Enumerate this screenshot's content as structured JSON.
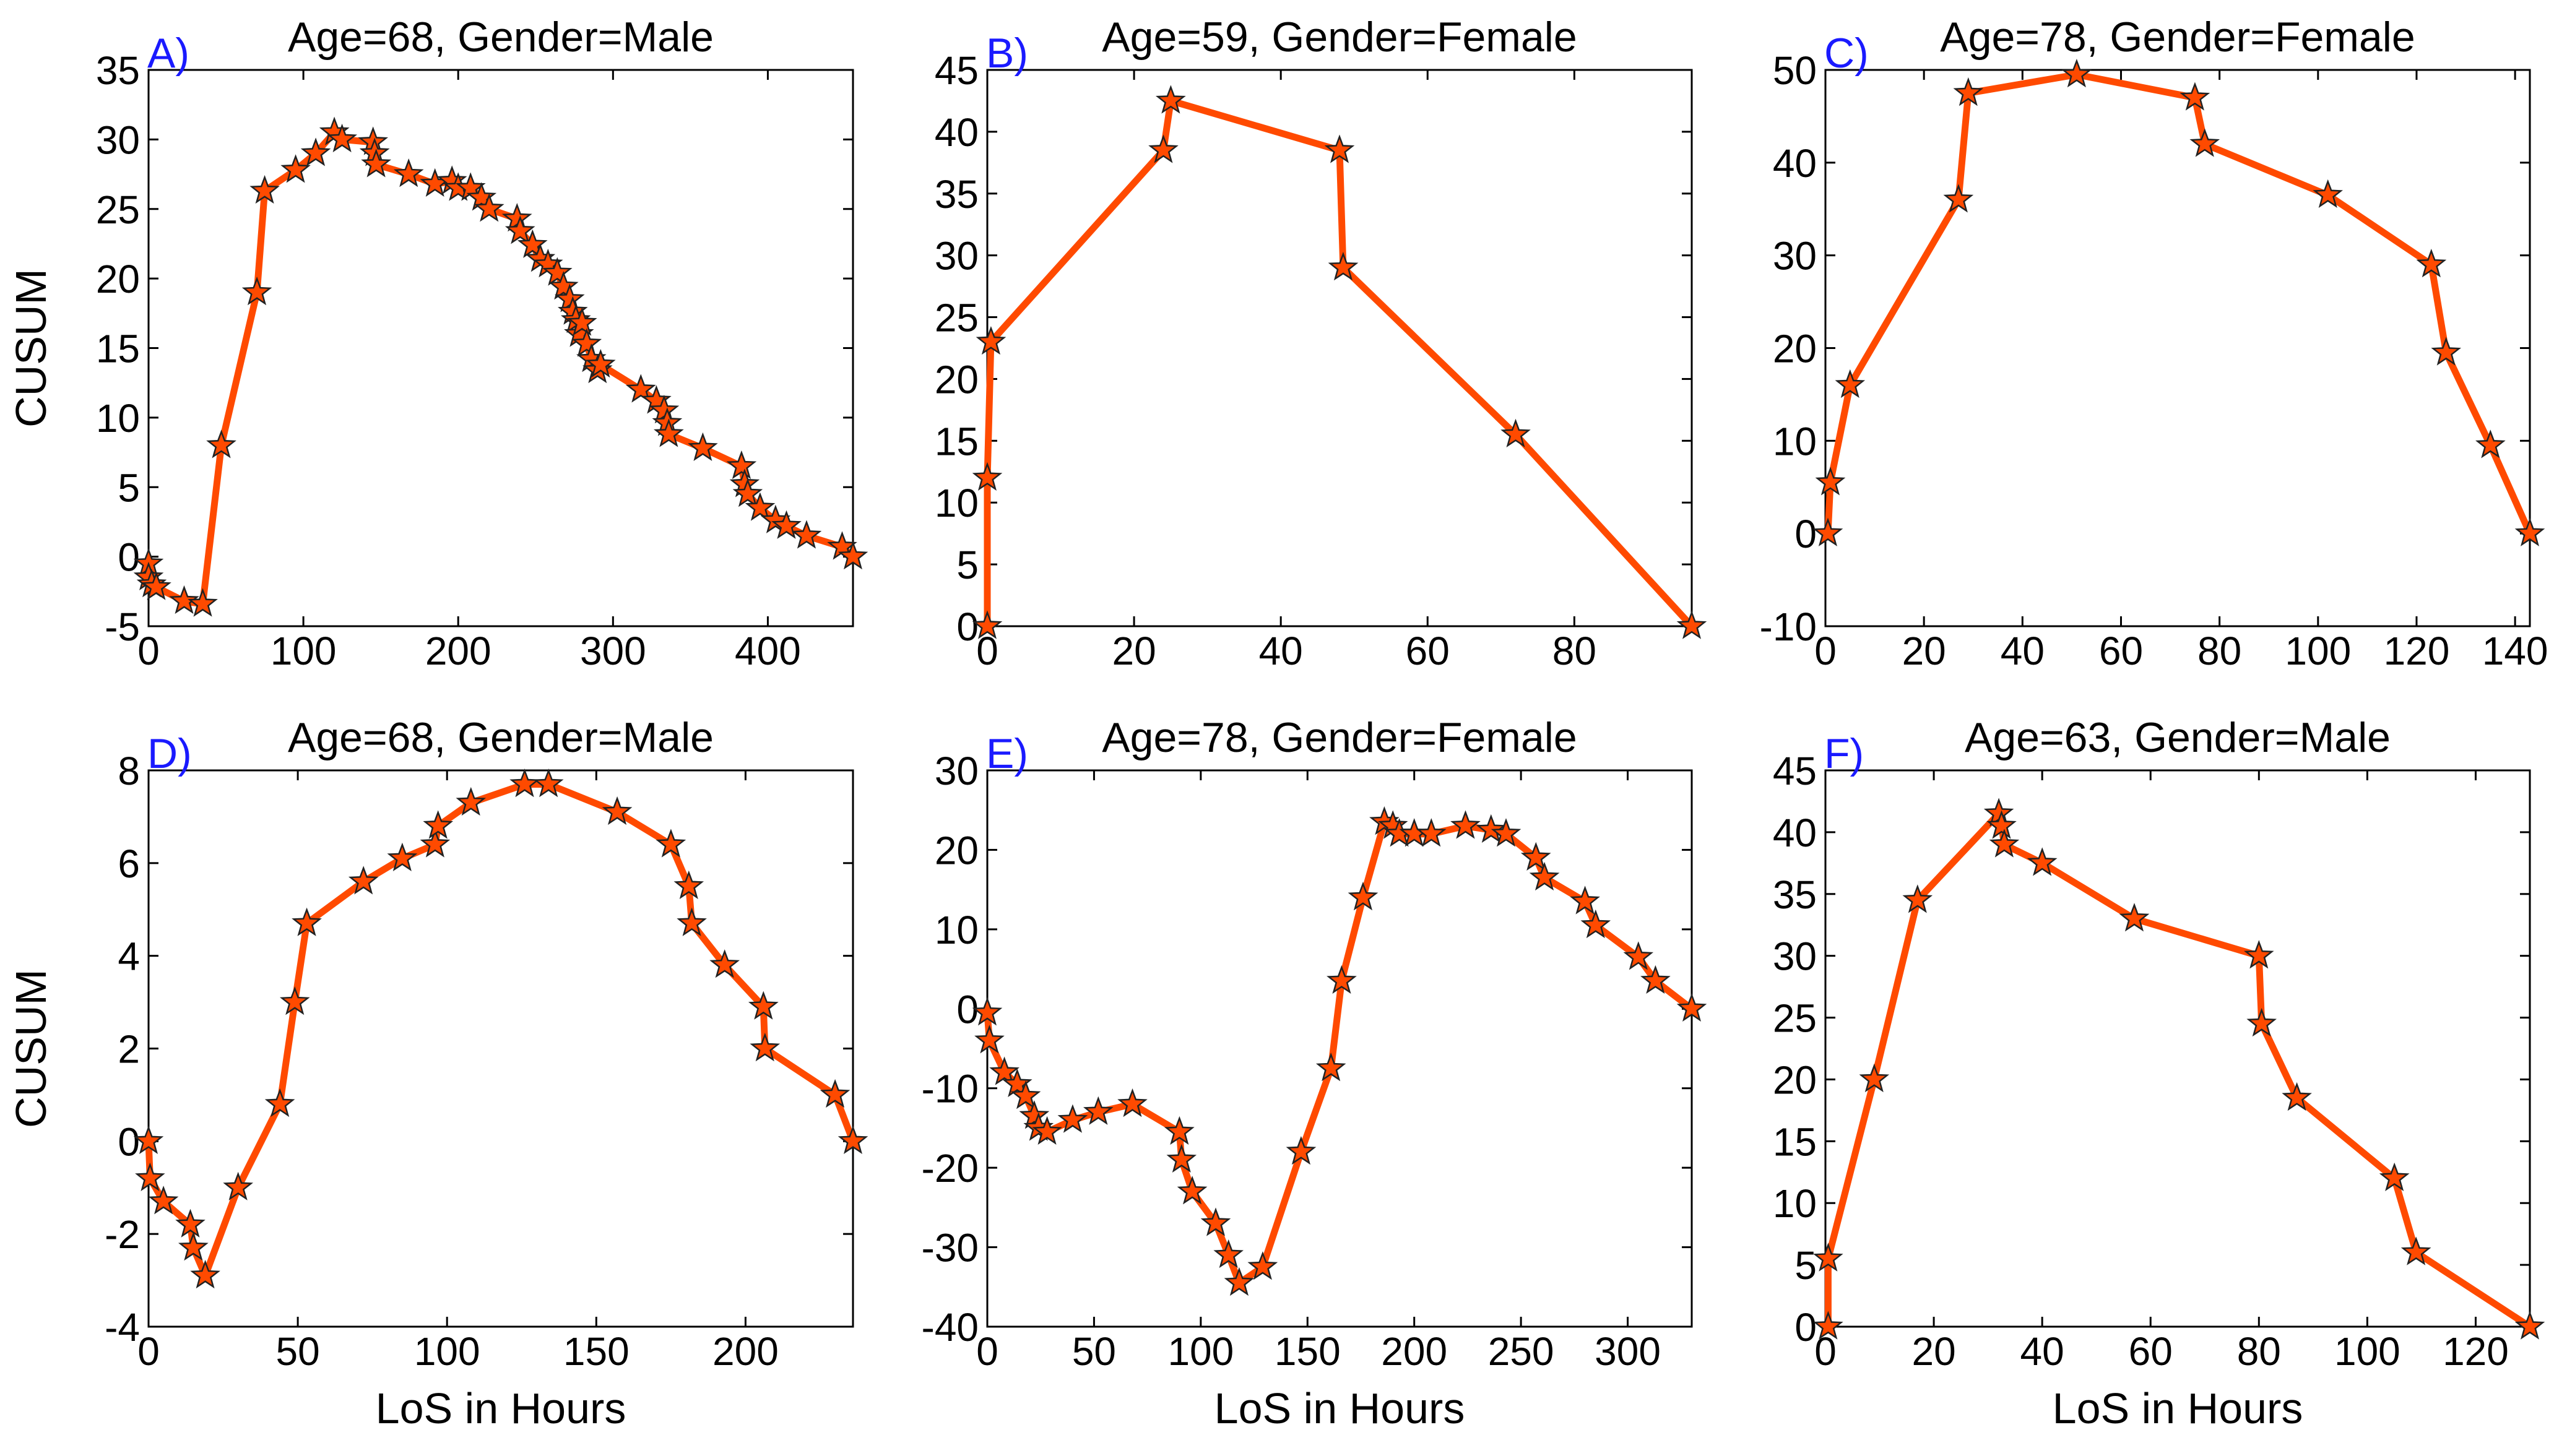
{
  "figure": {
    "line_color": "#ff4a00",
    "marker_color": "#ff4a00",
    "marker_edge_color": "#222222",
    "label_color": "#1a1aff"
  },
  "chart_data": [
    {
      "type": "line",
      "panel_label": "A)",
      "title": "Age=68, Gender=Male",
      "xlabel": "",
      "ylabel": "CUSUM",
      "xlim": [
        0,
        455
      ],
      "ylim": [
        -5,
        35
      ],
      "xticks": [
        0,
        100,
        200,
        300,
        400
      ],
      "yticks": [
        -5,
        0,
        5,
        10,
        15,
        20,
        25,
        30,
        35
      ],
      "marker": "star",
      "x": [
        0,
        0,
        2,
        5,
        23,
        35,
        47,
        70,
        75,
        95,
        108,
        120,
        125,
        145,
        146,
        147,
        168,
        185,
        196,
        200,
        208,
        215,
        220,
        238,
        240,
        248,
        253,
        258,
        264,
        268,
        272,
        274,
        276,
        278,
        280,
        283,
        286,
        290,
        292,
        318,
        328,
        333,
        335,
        336,
        358,
        383,
        385,
        387,
        395,
        405,
        412,
        425,
        448,
        455
      ],
      "y": [
        -0.5,
        -1.5,
        -2,
        -2.2,
        -3.2,
        -3.4,
        8,
        19,
        26.3,
        27.8,
        29,
        30.5,
        30,
        29.8,
        29,
        28.2,
        27.5,
        26.8,
        27,
        26.5,
        26.5,
        25.8,
        25,
        24.3,
        23.4,
        22.4,
        21.4,
        21,
        20.4,
        19.4,
        18.5,
        17.6,
        17,
        16,
        16.8,
        15.3,
        14.2,
        13.4,
        13.8,
        12,
        11.2,
        10.5,
        9.6,
        8.8,
        7.8,
        6.5,
        5.2,
        4.5,
        3.5,
        2.6,
        2.2,
        1.5,
        0.7,
        0
      ]
    },
    {
      "type": "line",
      "panel_label": "B)",
      "title": "Age=59, Gender=Female",
      "xlabel": "",
      "ylabel": "",
      "xlim": [
        0,
        96
      ],
      "ylim": [
        0,
        45
      ],
      "xticks": [
        0,
        20,
        40,
        60,
        80
      ],
      "yticks": [
        0,
        5,
        10,
        15,
        20,
        25,
        30,
        35,
        40,
        45
      ],
      "marker": "star",
      "x": [
        0,
        0,
        0.5,
        24,
        25,
        48,
        48.5,
        72,
        96
      ],
      "y": [
        0,
        12,
        23,
        38.5,
        42.5,
        38.5,
        29,
        15.5,
        0
      ]
    },
    {
      "type": "line",
      "panel_label": "C)",
      "title": "Age=78, Gender=Female",
      "xlabel": "",
      "ylabel": "",
      "xlim": [
        0,
        143
      ],
      "ylim": [
        -10,
        50
      ],
      "xticks": [
        0,
        20,
        40,
        60,
        80,
        100,
        120,
        140
      ],
      "yticks": [
        -10,
        0,
        10,
        20,
        30,
        40,
        50
      ],
      "marker": "star",
      "x": [
        0.5,
        1,
        5,
        27,
        29,
        51,
        75,
        77,
        102,
        123,
        126,
        135,
        143
      ],
      "y": [
        0,
        5.5,
        16,
        36,
        47.5,
        49.5,
        47,
        42,
        36.5,
        29,
        19.5,
        9.5,
        0
      ]
    },
    {
      "type": "line",
      "panel_label": "D)",
      "title": "Age=68, Gender=Male",
      "xlabel": "LoS in Hours",
      "ylabel": "CUSUM",
      "xlim": [
        0,
        236
      ],
      "ylim": [
        -4,
        8
      ],
      "xticks": [
        0,
        50,
        100,
        150,
        200
      ],
      "yticks": [
        -4,
        -2,
        0,
        2,
        4,
        6,
        8
      ],
      "marker": "star",
      "x": [
        0,
        0.5,
        5,
        14,
        15,
        19,
        30,
        44,
        49,
        53,
        72,
        85,
        96,
        97,
        108,
        126,
        134,
        157,
        175,
        181,
        182,
        193,
        206,
        206.5,
        230,
        236
      ],
      "y": [
        0,
        -0.8,
        -1.3,
        -1.8,
        -2.3,
        -2.9,
        -1,
        0.8,
        3,
        4.7,
        5.6,
        6.1,
        6.4,
        6.8,
        7.3,
        7.7,
        7.7,
        7.1,
        6.4,
        5.5,
        4.7,
        3.8,
        2.9,
        2,
        1,
        0
      ]
    },
    {
      "type": "line",
      "panel_label": "E)",
      "title": "Age=78, Gender=Female",
      "xlabel": "LoS in Hours",
      "ylabel": "",
      "xlim": [
        0,
        330
      ],
      "ylim": [
        -40,
        30
      ],
      "xticks": [
        0,
        50,
        100,
        150,
        200,
        250,
        300
      ],
      "yticks": [
        -40,
        -30,
        -20,
        -10,
        0,
        10,
        20,
        30
      ],
      "marker": "star",
      "x": [
        0,
        1,
        8,
        14,
        18,
        22,
        24,
        28,
        40,
        52,
        68,
        90,
        91,
        96,
        107,
        113,
        118,
        129,
        147,
        161,
        166,
        176,
        186,
        190,
        193,
        200,
        208,
        224,
        236,
        243,
        257,
        261,
        280,
        285,
        305,
        313,
        330
      ],
      "y": [
        -0.5,
        -4,
        -8,
        -9.5,
        -11,
        -13.5,
        -15,
        -15.5,
        -14,
        -13,
        -12,
        -15.5,
        -19,
        -23,
        -27,
        -31,
        -34.5,
        -32.5,
        -18,
        -7.5,
        3.5,
        14,
        23.5,
        23,
        22,
        22,
        22,
        23,
        22.5,
        22,
        19,
        16.5,
        13.5,
        10.5,
        6.5,
        3.5,
        0
      ]
    },
    {
      "type": "line",
      "panel_label": "F)",
      "title": "Age=63, Gender=Male",
      "xlabel": "LoS in Hours",
      "ylabel": "",
      "xlim": [
        0,
        130
      ],
      "ylim": [
        0,
        45
      ],
      "xticks": [
        0,
        20,
        40,
        60,
        80,
        100,
        120
      ],
      "yticks": [
        0,
        5,
        10,
        15,
        20,
        25,
        30,
        35,
        40,
        45
      ],
      "marker": "star",
      "x": [
        0.5,
        0.5,
        9,
        17,
        32,
        32.5,
        33,
        40,
        57,
        80,
        80.5,
        87,
        105,
        109,
        130
      ],
      "y": [
        0,
        5.5,
        20,
        34.5,
        41.5,
        40.5,
        39,
        37.5,
        33,
        30,
        24.5,
        18.5,
        12,
        6,
        0
      ]
    }
  ]
}
